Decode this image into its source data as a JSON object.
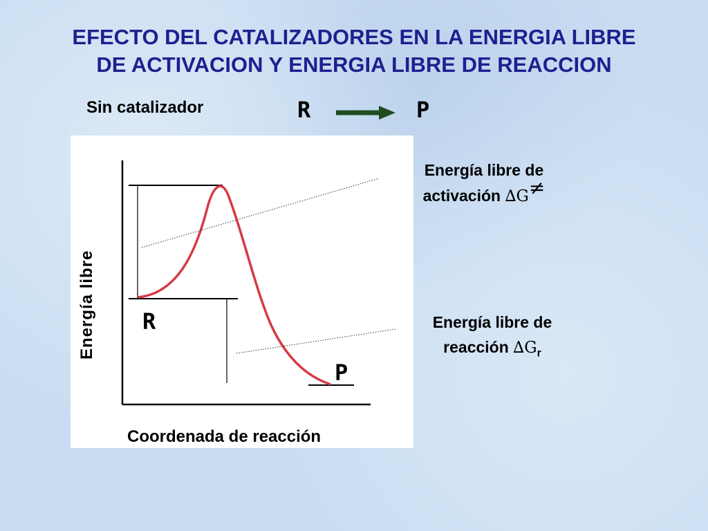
{
  "title": {
    "line1": "EFECTO DEL CATALIZADORES EN LA ENERGIA LIBRE",
    "line2": "DE ACTIVACION Y ENERGIA LIBRE DE REACCION"
  },
  "subtitle": "Sin catalizador",
  "reaction": {
    "reactant": "R",
    "product": "P",
    "arrow_color": "#1f4d1f"
  },
  "diagram": {
    "y_axis_label": "Energía libre",
    "x_axis_label": "Coordenada de reacción",
    "curve_reactant_label": "R",
    "curve_product_label": "P",
    "curve_color": "#d63a45"
  },
  "callouts": {
    "activation": {
      "line1": "Energía libre de",
      "line2_text": "activación ",
      "symbol": "∆G",
      "superscript": "≠"
    },
    "reaction": {
      "line1": "Energía libre de",
      "line2_text": "reacción ",
      "symbol": "∆G",
      "subscript": "r"
    }
  }
}
